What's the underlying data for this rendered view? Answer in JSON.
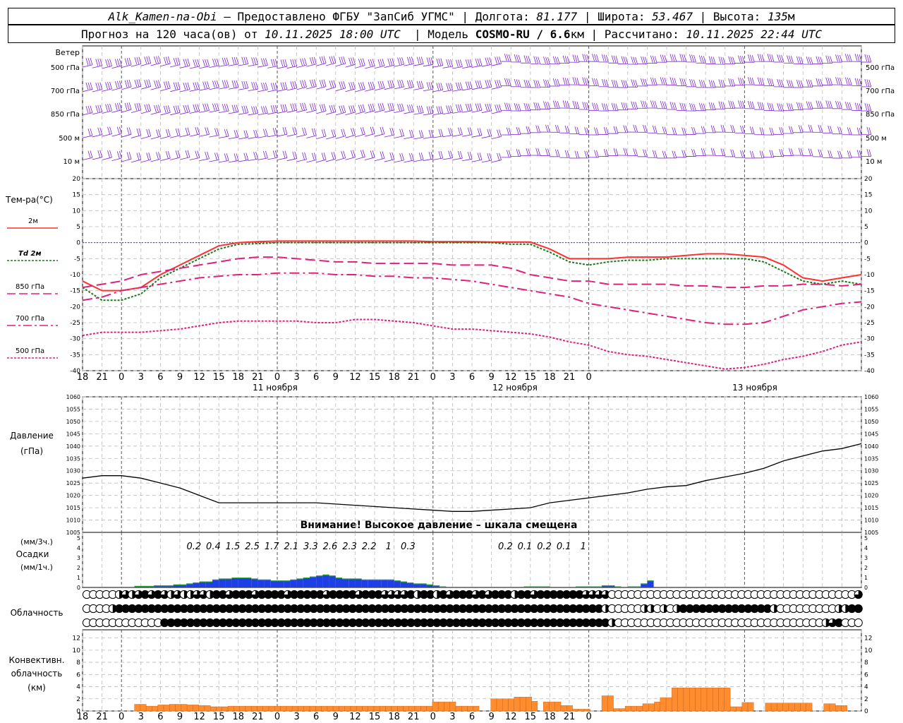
{
  "header": {
    "station": "Alk_Kamen-na-Obi",
    "provided_by": "– Предоставлено ФГБУ \"ЗапСиб УГМС\"",
    "lon_label": "Долгота:",
    "lon": "81.177",
    "lat_label": "Широта:",
    "lat": "53.467",
    "alt_label": "Высота:",
    "alt": "135",
    "alt_unit": "м",
    "forecast_label": "Прогноз на 120 часа(ов) от",
    "forecast_start": "10.11.2025 18:00 UTC",
    "model_label": "Модель",
    "model": "COSMO-RU / 6.6",
    "model_unit": "км",
    "computed_label": "Рассчитано:",
    "computed": "10.11.2025 22:44 UTC"
  },
  "wind_panel": {
    "title": "Ветер",
    "levels": [
      "500 гПа",
      "700 гПа",
      "850 гПа",
      "500 м",
      "10 м"
    ]
  },
  "colors": {
    "t2m": "#ff3030",
    "td2m": "#1a7a1a",
    "t850": "#e0207a",
    "t700": "#e0207a",
    "t500": "#e0207a",
    "zero_line": "#3030ff",
    "precip": "#1e3ee6",
    "precip_top": "#2ca02c",
    "convective": "#ff8c2e",
    "wind_barb": "#7b1fd6",
    "pressure": "#000000"
  },
  "chart_data": [
    {
      "type": "line",
      "panel": "temperature",
      "title": "Тем-ра(°С)",
      "ylim": [
        -40,
        20
      ],
      "yticks": [
        20,
        15,
        10,
        5,
        0,
        -5,
        -10,
        -15,
        -20,
        -25,
        -30,
        -35,
        -40
      ],
      "x_hours": [
        0,
        3,
        6,
        9,
        12,
        15,
        18,
        21,
        24,
        27,
        30,
        33,
        36,
        39,
        42,
        45,
        48,
        51,
        54,
        57,
        60,
        63,
        66,
        69,
        72,
        75,
        78,
        81,
        84,
        87,
        90,
        93,
        96,
        99,
        102,
        105,
        108,
        111,
        114,
        117,
        120
      ],
      "x_tick_labels": [
        "18",
        "21",
        "0",
        "3",
        "6",
        "9",
        "12",
        "15",
        "18",
        "21",
        "0",
        "3",
        "6",
        "9",
        "12",
        "15",
        "18",
        "21",
        "0",
        "3",
        "6",
        "9",
        "12",
        "15",
        "18",
        "21",
        "0"
      ],
      "day_labels": [
        "11 ноября",
        "12 ноября",
        "13 ноября"
      ],
      "series": [
        {
          "name": "2м",
          "values": [
            -12,
            -15,
            -15,
            -14,
            -10,
            -7,
            -4,
            -1,
            0,
            0.3,
            0.5,
            0.5,
            0.5,
            0.5,
            0.5,
            0.5,
            0.5,
            0.5,
            0.3,
            0.3,
            0.3,
            0.2,
            0.2,
            0.2,
            -2,
            -5,
            -5,
            -5,
            -4.5,
            -4.5,
            -4.5,
            -4,
            -3.5,
            -3.5,
            -4,
            -4.5,
            -7,
            -11,
            -12,
            -11,
            -10
          ]
        },
        {
          "name": "Td 2м",
          "values": [
            -14,
            -18,
            -18,
            -16,
            -11,
            -8,
            -5,
            -2,
            -0.5,
            -0.3,
            0,
            0,
            0,
            0,
            0,
            0,
            0,
            0,
            0,
            0,
            0,
            0,
            -0.5,
            -0.5,
            -3,
            -6,
            -7,
            -6,
            -5.5,
            -5.5,
            -5,
            -5,
            -5,
            -5,
            -5,
            -6,
            -9,
            -12,
            -13,
            -12,
            -13
          ]
        },
        {
          "name": "850 гПа",
          "values": [
            -14,
            -13,
            -12,
            -10,
            -9,
            -8,
            -7,
            -6,
            -5,
            -4.5,
            -4.5,
            -5,
            -5.5,
            -6,
            -6,
            -6.5,
            -6.5,
            -6.5,
            -6.5,
            -7,
            -7,
            -7,
            -8,
            -10,
            -11,
            -12,
            -12,
            -13,
            -13,
            -13,
            -13,
            -13.5,
            -13.5,
            -14,
            -14,
            -13.5,
            -13.5,
            -13,
            -13,
            -13.5,
            -13
          ]
        },
        {
          "name": "700 гПа",
          "values": [
            -18,
            -17,
            -15,
            -14,
            -13,
            -12,
            -11,
            -10.5,
            -10,
            -10,
            -9.5,
            -9.5,
            -9.5,
            -10,
            -10,
            -10.5,
            -10.5,
            -11,
            -11,
            -11.5,
            -12,
            -13,
            -14,
            -15,
            -16,
            -17,
            -19,
            -20,
            -21,
            -22,
            -23,
            -24,
            -25,
            -25.5,
            -25.5,
            -25,
            -23,
            -21,
            -20,
            -19,
            -18.5
          ]
        },
        {
          "name": "500 гПа",
          "values": [
            -29,
            -28,
            -28,
            -28,
            -27.5,
            -27,
            -26,
            -25,
            -24.5,
            -24.5,
            -24.5,
            -24.5,
            -25,
            -25,
            -24,
            -24,
            -24.5,
            -25,
            -26,
            -27,
            -27,
            -27.5,
            -28,
            -28.5,
            -29.5,
            -31,
            -32,
            -34,
            -35,
            -35.5,
            -36.5,
            -37.5,
            -38.5,
            -39.5,
            -39,
            -38,
            -36.5,
            -35.5,
            -34,
            -32,
            -31
          ]
        }
      ]
    },
    {
      "type": "line",
      "panel": "pressure",
      "title": "Давление",
      "unit": "(гПа)",
      "ylim": [
        1005,
        1060
      ],
      "yticks": [
        1060,
        1055,
        1050,
        1045,
        1040,
        1035,
        1030,
        1025,
        1020,
        1015,
        1010,
        1005
      ],
      "note": "Внимание! Высокое давление – шкала смещена",
      "x_hours": [
        0,
        3,
        6,
        9,
        12,
        15,
        18,
        21,
        24,
        27,
        30,
        33,
        36,
        39,
        42,
        45,
        48,
        51,
        54,
        57,
        60,
        63,
        66,
        69,
        72,
        75,
        78,
        81,
        84,
        87,
        90,
        93,
        96,
        99,
        102,
        105,
        108,
        111,
        114,
        117,
        120
      ],
      "series": [
        {
          "name": "",
          "values": [
            1027,
            1028,
            1028,
            1027,
            1025,
            1023,
            1020,
            1017,
            1017,
            1017,
            1017,
            1017,
            1017,
            1016.5,
            1016,
            1015.5,
            1015,
            1014.5,
            1014,
            1013.5,
            1013.5,
            1014,
            1014.5,
            1015,
            1017,
            1018,
            1019,
            1020,
            1021,
            1022.5,
            1023.5,
            1024,
            1026,
            1027.5,
            1029,
            1031,
            1034,
            1036,
            1038,
            1039,
            1041
          ]
        }
      ]
    },
    {
      "type": "bar",
      "panel": "precipitation",
      "title": "Осадки",
      "unit_3h": "(мм/3ч.)",
      "unit_1h": "(мм/1ч.)",
      "ylim": [
        0,
        5
      ],
      "yticks": [
        5,
        4,
        3,
        2,
        1,
        0
      ],
      "labels_3h": [
        {
          "hour": 18,
          "text": "0.2"
        },
        {
          "hour": 21,
          "text": "0.4"
        },
        {
          "hour": 24,
          "text": "1.5"
        },
        {
          "hour": 27,
          "text": "2.5"
        },
        {
          "hour": 30,
          "text": "1.7"
        },
        {
          "hour": 33,
          "text": "2.1"
        },
        {
          "hour": 36,
          "text": "3.3"
        },
        {
          "hour": 39,
          "text": "2.6"
        },
        {
          "hour": 42,
          "text": "2.3"
        },
        {
          "hour": 45,
          "text": "2.2"
        },
        {
          "hour": 48,
          "text": "1"
        },
        {
          "hour": 51,
          "text": "0.3"
        },
        {
          "hour": 66,
          "text": "0.2"
        },
        {
          "hour": 69,
          "text": "0.1"
        },
        {
          "hour": 72,
          "text": "0.2"
        },
        {
          "hour": 75,
          "text": "0.1"
        },
        {
          "hour": 78,
          "text": "1"
        }
      ],
      "hourly_start": 9,
      "hourly_values": [
        0.15,
        0.15,
        0.15,
        0.2,
        0.2,
        0.2,
        0.3,
        0.3,
        0.4,
        0.5,
        0.6,
        0.6,
        0.8,
        0.9,
        0.9,
        1.0,
        1.0,
        1.0,
        0.9,
        0.8,
        0.8,
        0.7,
        0.7,
        0.7,
        0.8,
        0.9,
        1.0,
        1.1,
        1.2,
        1.3,
        1.2,
        1.0,
        0.9,
        0.9,
        0.9,
        0.8,
        0.8,
        0.8,
        0.8,
        0.8,
        0.7,
        0.6,
        0.5,
        0.4,
        0.4,
        0.3,
        0.2,
        0.1,
        0,
        0,
        0,
        0,
        0,
        0,
        0,
        0,
        0,
        0,
        0,
        0,
        0.1,
        0.1,
        0.1,
        0.1,
        0,
        0,
        0,
        0,
        0.1,
        0.1,
        0.1,
        0.1,
        0.2,
        0.2,
        0.1,
        0,
        0.1,
        0.1,
        0.4,
        0.7
      ]
    },
    {
      "type": "table",
      "panel": "cloudiness",
      "title": "Облачность",
      "layers": [
        {
          "name": "high",
          "values": [
            0,
            0,
            0,
            0,
            0,
            2,
            3,
            2,
            3,
            4,
            3,
            4,
            3,
            2,
            3,
            2,
            2,
            3,
            3,
            2,
            4,
            4,
            3,
            4,
            4,
            4,
            3,
            4,
            4,
            4,
            4,
            3,
            4,
            4,
            4,
            4,
            4,
            3,
            4,
            4,
            4,
            4,
            3,
            4,
            4,
            4,
            3,
            3,
            3,
            3,
            4,
            2,
            4,
            4,
            2,
            4,
            3,
            4,
            4,
            4,
            3,
            4,
            3,
            4,
            4,
            4,
            2,
            4,
            4,
            3,
            4,
            4,
            4,
            4,
            4,
            4,
            4,
            3,
            3,
            3,
            3,
            0,
            0,
            0,
            0,
            0,
            0,
            0,
            0,
            0,
            0,
            0,
            0,
            0,
            0,
            0,
            0,
            0,
            0,
            0,
            0,
            0,
            0,
            0,
            0,
            0,
            0,
            0,
            0,
            0,
            0,
            0,
            0,
            0,
            0,
            0,
            0,
            0,
            0,
            3,
            4,
            4
          ]
        },
        {
          "name": "middle",
          "values": [
            0,
            0,
            0,
            0,
            2,
            4,
            4,
            4,
            4,
            4,
            4,
            4,
            4,
            4,
            4,
            4,
            4,
            4,
            4,
            4,
            4,
            4,
            4,
            4,
            4,
            4,
            4,
            4,
            4,
            4,
            4,
            4,
            4,
            4,
            4,
            4,
            4,
            4,
            4,
            4,
            4,
            4,
            4,
            4,
            4,
            4,
            4,
            4,
            4,
            4,
            4,
            4,
            4,
            4,
            4,
            4,
            4,
            4,
            4,
            4,
            4,
            4,
            4,
            4,
            4,
            4,
            4,
            4,
            4,
            4,
            4,
            4,
            4,
            4,
            4,
            4,
            4,
            4,
            4,
            4,
            2,
            0,
            0,
            0,
            0,
            0,
            2,
            2,
            0,
            2,
            0,
            2,
            4,
            4,
            4,
            4,
            4,
            4,
            4,
            4,
            4,
            4,
            4,
            4,
            4,
            4,
            2,
            0,
            0,
            0,
            0,
            0,
            0,
            0,
            0,
            0,
            2,
            2,
            4,
            4,
            4,
            4
          ]
        },
        {
          "name": "low",
          "values": [
            0,
            0,
            0,
            0,
            0,
            0,
            0,
            0,
            0,
            0,
            0,
            0,
            4,
            4,
            4,
            4,
            4,
            4,
            4,
            4,
            4,
            4,
            4,
            4,
            4,
            4,
            4,
            4,
            4,
            4,
            4,
            4,
            4,
            4,
            4,
            4,
            4,
            4,
            4,
            4,
            4,
            4,
            4,
            4,
            4,
            4,
            4,
            4,
            4,
            4,
            4,
            4,
            4,
            4,
            4,
            4,
            4,
            4,
            4,
            4,
            4,
            4,
            4,
            4,
            4,
            4,
            4,
            4,
            4,
            4,
            4,
            4,
            4,
            4,
            4,
            4,
            4,
            4,
            4,
            4,
            4,
            2,
            0,
            0,
            0,
            0,
            0,
            0,
            0,
            0,
            0,
            0,
            0,
            0,
            0,
            0,
            0,
            0,
            0,
            0,
            0,
            0,
            0,
            0,
            0,
            0,
            0,
            0,
            0,
            0,
            0,
            0,
            0,
            0,
            2,
            3,
            4,
            0,
            0,
            0,
            0,
            0
          ]
        }
      ]
    },
    {
      "type": "bar",
      "panel": "convective",
      "title": "Конвективн. облачность",
      "unit": "(км)",
      "ylim": [
        0,
        13
      ],
      "yticks": [
        12,
        10,
        8,
        6,
        4,
        2,
        0
      ],
      "hourly_start": 9,
      "hourly_values": [
        1.1,
        1.1,
        0.8,
        0.8,
        1.0,
        1.0,
        1.1,
        1.1,
        1.1,
        1.0,
        1.0,
        0.9,
        0.9,
        0.7,
        0.7,
        0.7,
        0.8,
        0.8,
        0.8,
        0.8,
        0.8,
        0.8,
        0.8,
        0.8,
        0.8,
        0.8,
        0.8,
        0.8,
        0.8,
        0.8,
        0.8,
        0.8,
        0.8,
        0.8,
        0.8,
        0.8,
        0.8,
        0.8,
        0.8,
        0.8,
        0.8,
        0.8,
        0.8,
        0.8,
        0.8,
        0.8,
        0.8,
        0.8,
        0.8,
        0.8,
        0.8,
        1.5,
        1.5,
        1.5,
        1.5,
        0.8,
        0.8,
        0.8,
        0.8,
        0,
        0,
        2.0,
        2.0,
        2.0,
        2.0,
        2.3,
        2.3,
        2.3,
        1.6,
        0,
        1.5,
        1.5,
        1.5,
        0.9,
        0.9,
        0.3,
        0.3,
        0.3,
        0,
        0,
        2.5,
        2.5,
        0.4,
        0.4,
        0.8,
        0.8,
        0.8,
        1.2,
        1.2,
        1.5,
        2.2,
        2.2,
        3.8,
        3.8,
        3.8,
        3.8,
        3.8,
        3.8,
        3.8,
        3.8,
        3.8,
        3.8,
        0.7,
        0.7,
        1.4,
        1.4,
        0,
        0,
        1.3,
        1.3,
        1.3,
        1.3,
        1.3,
        1.3,
        1.3,
        1.3,
        0,
        0,
        1.2,
        1.2,
        0.9,
        0.9
      ]
    }
  ]
}
